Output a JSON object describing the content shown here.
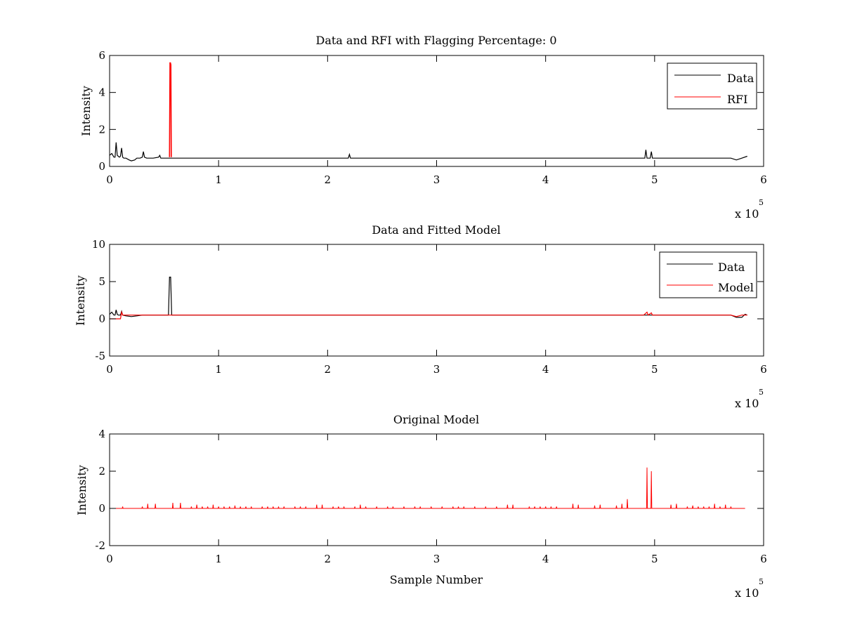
{
  "chart_data": [
    {
      "type": "line",
      "title": "Data and RFI with Flagging Percentage: 0",
      "xlabel": "",
      "ylabel": "Intensity",
      "xlim": [
        0,
        600000
      ],
      "ylim": [
        0,
        6
      ],
      "x_ticks": [
        "0",
        "1",
        "2",
        "3",
        "4",
        "5",
        "6"
      ],
      "y_ticks": [
        "0",
        "2",
        "4",
        "6"
      ],
      "x_multiplier": {
        "base": "x 10",
        "exponent": "5"
      },
      "legend": {
        "position": "top-right",
        "entries": [
          "Data",
          "RFI"
        ]
      },
      "series": [
        {
          "name": "Data",
          "color": "#000000",
          "x": [
            0,
            2000,
            4000,
            5000,
            6000,
            7000,
            8000,
            9000,
            10000,
            11000,
            12000,
            13000,
            15000,
            18000,
            20000,
            23000,
            25000,
            28000,
            30000,
            31000,
            32000,
            34000,
            40000,
            45000,
            46000,
            47000,
            50000,
            60000,
            80000,
            100000,
            150000,
            200000,
            219000,
            220000,
            221000,
            300000,
            400000,
            490000,
            491000,
            492000,
            493000,
            494000,
            495000,
            496000,
            497000,
            498000,
            499000,
            500000,
            550000,
            570000,
            575000,
            580000,
            585000
          ],
          "y": [
            0.6,
            0.7,
            0.5,
            0.5,
            1.3,
            0.6,
            0.55,
            0.5,
            0.55,
            1.0,
            0.5,
            0.45,
            0.45,
            0.35,
            0.3,
            0.35,
            0.45,
            0.45,
            0.5,
            0.8,
            0.5,
            0.45,
            0.45,
            0.5,
            0.6,
            0.45,
            0.45,
            0.45,
            0.45,
            0.45,
            0.45,
            0.45,
            0.45,
            0.65,
            0.45,
            0.45,
            0.45,
            0.45,
            0.45,
            0.9,
            0.45,
            0.45,
            0.45,
            0.45,
            0.8,
            0.45,
            0.45,
            0.45,
            0.45,
            0.45,
            0.35,
            0.45,
            0.55
          ]
        },
        {
          "name": "RFI",
          "color": "#ff0000",
          "x": [
            55000,
            55400,
            55800,
            56200,
            56600
          ],
          "y": [
            0.5,
            5.6,
            5.6,
            5.5,
            0.5
          ]
        }
      ]
    },
    {
      "type": "line",
      "title": "Data and Fitted Model",
      "xlabel": "",
      "ylabel": "Intensity",
      "xlim": [
        0,
        600000
      ],
      "ylim": [
        -5,
        10
      ],
      "x_ticks": [
        "0",
        "1",
        "2",
        "3",
        "4",
        "5",
        "6"
      ],
      "y_ticks": [
        "-5",
        "0",
        "5",
        "10"
      ],
      "x_multiplier": {
        "base": "x 10",
        "exponent": "5"
      },
      "legend": {
        "position": "top-right",
        "entries": [
          "Data",
          "Model"
        ]
      },
      "series": [
        {
          "name": "Data",
          "color": "#000000",
          "x": [
            0,
            2000,
            4000,
            5000,
            6000,
            7000,
            8000,
            10000,
            11000,
            12000,
            15000,
            20000,
            25000,
            30000,
            35000,
            50000,
            54000,
            55000,
            56000,
            57000,
            60000,
            100000,
            300000,
            500000,
            560000,
            570000,
            575000,
            580000,
            583000,
            585000
          ],
          "y": [
            0.6,
            0.9,
            0.5,
            0.5,
            1.2,
            0.6,
            0.5,
            0.5,
            1.0,
            0.5,
            0.4,
            0.3,
            0.4,
            0.5,
            0.5,
            0.5,
            0.5,
            5.6,
            5.6,
            0.5,
            0.5,
            0.5,
            0.5,
            0.5,
            0.5,
            0.5,
            0.2,
            0.2,
            0.6,
            0.5
          ]
        },
        {
          "name": "Model",
          "color": "#ff0000",
          "x": [
            0,
            10000,
            11000,
            12000,
            13000,
            50000,
            100000,
            200000,
            300000,
            400000,
            490000,
            493000,
            494000,
            497000,
            498000,
            500000,
            560000,
            570000,
            575000,
            580000,
            585000
          ],
          "y": [
            0.0,
            0.0,
            0.9,
            0.5,
            0.5,
            0.5,
            0.5,
            0.5,
            0.5,
            0.5,
            0.5,
            0.9,
            0.5,
            0.8,
            0.5,
            0.5,
            0.5,
            0.5,
            0.3,
            0.5,
            0.5
          ]
        }
      ]
    },
    {
      "type": "line",
      "title": "Original Model",
      "xlabel": "Sample Number",
      "ylabel": "Intensity",
      "xlim": [
        0,
        600000
      ],
      "ylim": [
        -2,
        4
      ],
      "x_ticks": [
        "0",
        "1",
        "2",
        "3",
        "4",
        "5",
        "6"
      ],
      "y_ticks": [
        "-2",
        "0",
        "2",
        "4"
      ],
      "x_multiplier": {
        "base": "x 10",
        "exponent": "5"
      },
      "baseline": 0,
      "x_end": 583000,
      "series": [
        {
          "name": "",
          "color": "#ff0000",
          "spikes": [
            [
              12000,
              0.1
            ],
            [
              30000,
              0.1
            ],
            [
              35000,
              0.25
            ],
            [
              42000,
              0.25
            ],
            [
              58000,
              0.3
            ],
            [
              65000,
              0.3
            ],
            [
              75000,
              0.1
            ],
            [
              80000,
              0.2
            ],
            [
              85000,
              0.1
            ],
            [
              90000,
              0.1
            ],
            [
              95000,
              0.2
            ],
            [
              100000,
              0.1
            ],
            [
              105000,
              0.1
            ],
            [
              110000,
              0.1
            ],
            [
              115000,
              0.15
            ],
            [
              120000,
              0.1
            ],
            [
              125000,
              0.1
            ],
            [
              130000,
              0.1
            ],
            [
              140000,
              0.1
            ],
            [
              145000,
              0.1
            ],
            [
              150000,
              0.1
            ],
            [
              155000,
              0.1
            ],
            [
              160000,
              0.1
            ],
            [
              170000,
              0.1
            ],
            [
              175000,
              0.1
            ],
            [
              180000,
              0.1
            ],
            [
              190000,
              0.2
            ],
            [
              195000,
              0.2
            ],
            [
              205000,
              0.1
            ],
            [
              210000,
              0.1
            ],
            [
              215000,
              0.1
            ],
            [
              225000,
              0.1
            ],
            [
              230000,
              0.2
            ],
            [
              235000,
              0.1
            ],
            [
              245000,
              0.1
            ],
            [
              255000,
              0.1
            ],
            [
              260000,
              0.1
            ],
            [
              270000,
              0.1
            ],
            [
              280000,
              0.1
            ],
            [
              285000,
              0.1
            ],
            [
              295000,
              0.1
            ],
            [
              305000,
              0.1
            ],
            [
              315000,
              0.1
            ],
            [
              320000,
              0.1
            ],
            [
              325000,
              0.1
            ],
            [
              335000,
              0.1
            ],
            [
              345000,
              0.1
            ],
            [
              355000,
              0.1
            ],
            [
              365000,
              0.2
            ],
            [
              370000,
              0.2
            ],
            [
              385000,
              0.1
            ],
            [
              390000,
              0.1
            ],
            [
              395000,
              0.1
            ],
            [
              400000,
              0.1
            ],
            [
              405000,
              0.1
            ],
            [
              410000,
              0.1
            ],
            [
              425000,
              0.25
            ],
            [
              430000,
              0.2
            ],
            [
              445000,
              0.15
            ],
            [
              450000,
              0.2
            ],
            [
              465000,
              0.15
            ],
            [
              470000,
              0.25
            ],
            [
              475000,
              0.5
            ],
            [
              493000,
              2.2
            ],
            [
              497000,
              2.0
            ],
            [
              515000,
              0.2
            ],
            [
              520000,
              0.25
            ],
            [
              530000,
              0.1
            ],
            [
              535000,
              0.15
            ],
            [
              540000,
              0.1
            ],
            [
              545000,
              0.1
            ],
            [
              550000,
              0.1
            ],
            [
              555000,
              0.25
            ],
            [
              560000,
              0.1
            ],
            [
              565000,
              0.2
            ],
            [
              570000,
              0.1
            ]
          ]
        }
      ]
    }
  ]
}
